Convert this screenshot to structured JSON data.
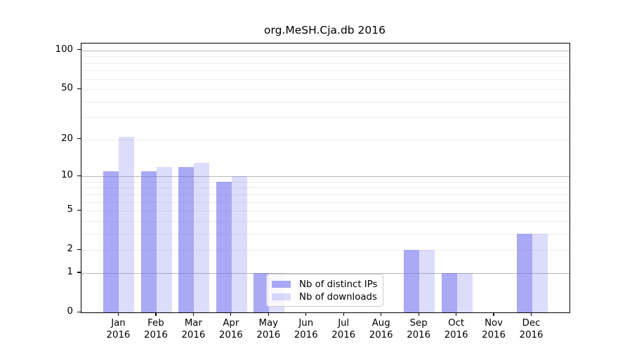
{
  "title": "org.MeSH.Cja.db 2016",
  "legend": {
    "items": [
      {
        "label": "Nb of distinct IPs",
        "color": "rgba(102,102,238,0.56)"
      },
      {
        "label": "Nb of downloads",
        "color": "rgba(102,102,238,0.23)"
      }
    ]
  },
  "chart_data": {
    "type": "bar",
    "title": "org.MeSH.Cja.db 2016",
    "categories": [
      "Jan 2016",
      "Feb 2016",
      "Mar 2016",
      "Apr 2016",
      "May 2016",
      "Jun 2016",
      "Jul 2016",
      "Aug 2016",
      "Sep 2016",
      "Oct 2016",
      "Nov 2016",
      "Dec 2016"
    ],
    "series": [
      {
        "name": "Nb of distinct IPs",
        "color": "rgba(102,102,238,0.56)",
        "values": [
          11,
          11,
          12,
          9,
          1,
          0,
          0,
          0,
          2,
          1,
          0,
          3
        ]
      },
      {
        "name": "Nb of downloads",
        "color": "rgba(102,102,238,0.23)",
        "values": [
          21,
          12,
          13,
          10,
          1,
          0,
          0,
          0,
          2,
          1,
          0,
          3
        ]
      }
    ],
    "xlabel": "",
    "ylabel": "",
    "y_scale": "log10(1+y)",
    "ylim": [
      0,
      113
    ],
    "y_tick_values": [
      0,
      1,
      2,
      5,
      10,
      20,
      50,
      100
    ],
    "y_major_gridlines": [
      1,
      10,
      100
    ],
    "y_minor_gridlines": [
      2,
      3,
      4,
      5,
      6,
      7,
      8,
      9,
      20,
      30,
      40,
      50,
      60,
      70,
      80,
      90
    ],
    "grid": true,
    "legend_position": "lower center"
  },
  "colors": {
    "major_grid": "#b9b9b9",
    "minor_grid": "#ececec",
    "axis": "#000000",
    "background": "#ffffff"
  }
}
